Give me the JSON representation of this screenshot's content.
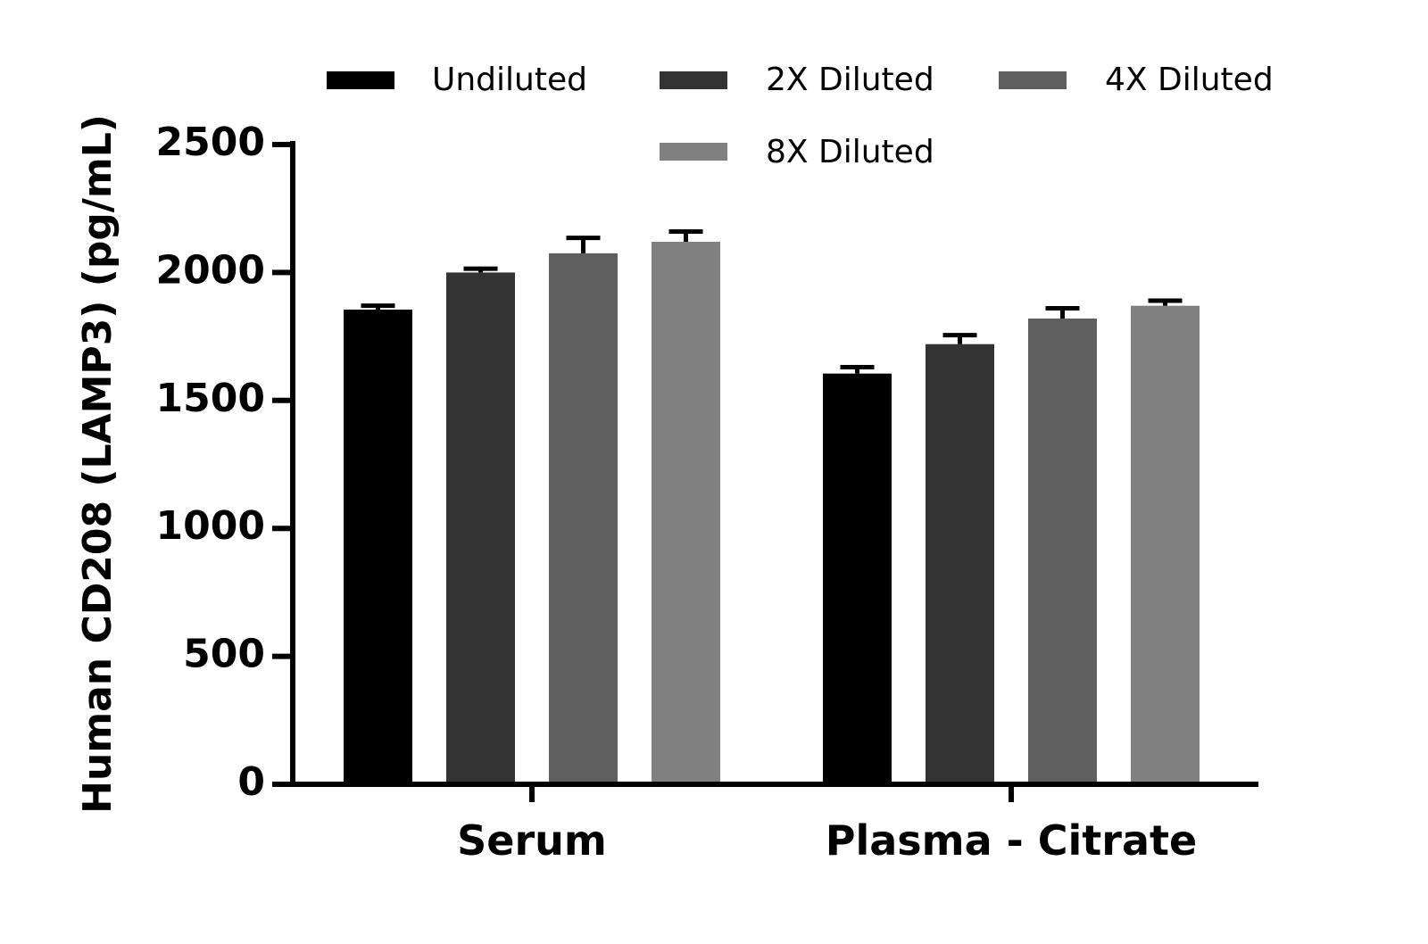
{
  "chart_data": {
    "type": "bar",
    "title": "",
    "xlabel": "",
    "ylabel": "Human CD208 (LAMP3) (pg/mL)",
    "ylim": [
      0,
      2500
    ],
    "yticks": [
      0,
      500,
      1000,
      1500,
      2000,
      2500
    ],
    "ytick_labels": [
      "0",
      "500",
      "1000",
      "1500",
      "2000",
      "2500"
    ],
    "categories": [
      "Serum",
      "Plasma - Citrate"
    ],
    "grid": false,
    "legend_position": "top",
    "series": [
      {
        "name": "Undiluted",
        "color": "#000000",
        "values": [
          1855,
          1605
        ],
        "errors": [
          15,
          25
        ]
      },
      {
        "name": "2X Diluted",
        "color": "#333333",
        "values": [
          2000,
          1720
        ],
        "errors": [
          15,
          35
        ]
      },
      {
        "name": "4X Diluted",
        "color": "#5f5f5f",
        "values": [
          2075,
          1820
        ],
        "errors": [
          60,
          40
        ]
      },
      {
        "name": "8X Diluted",
        "color": "#808080",
        "values": [
          2120,
          1870
        ],
        "errors": [
          40,
          20
        ]
      }
    ]
  }
}
